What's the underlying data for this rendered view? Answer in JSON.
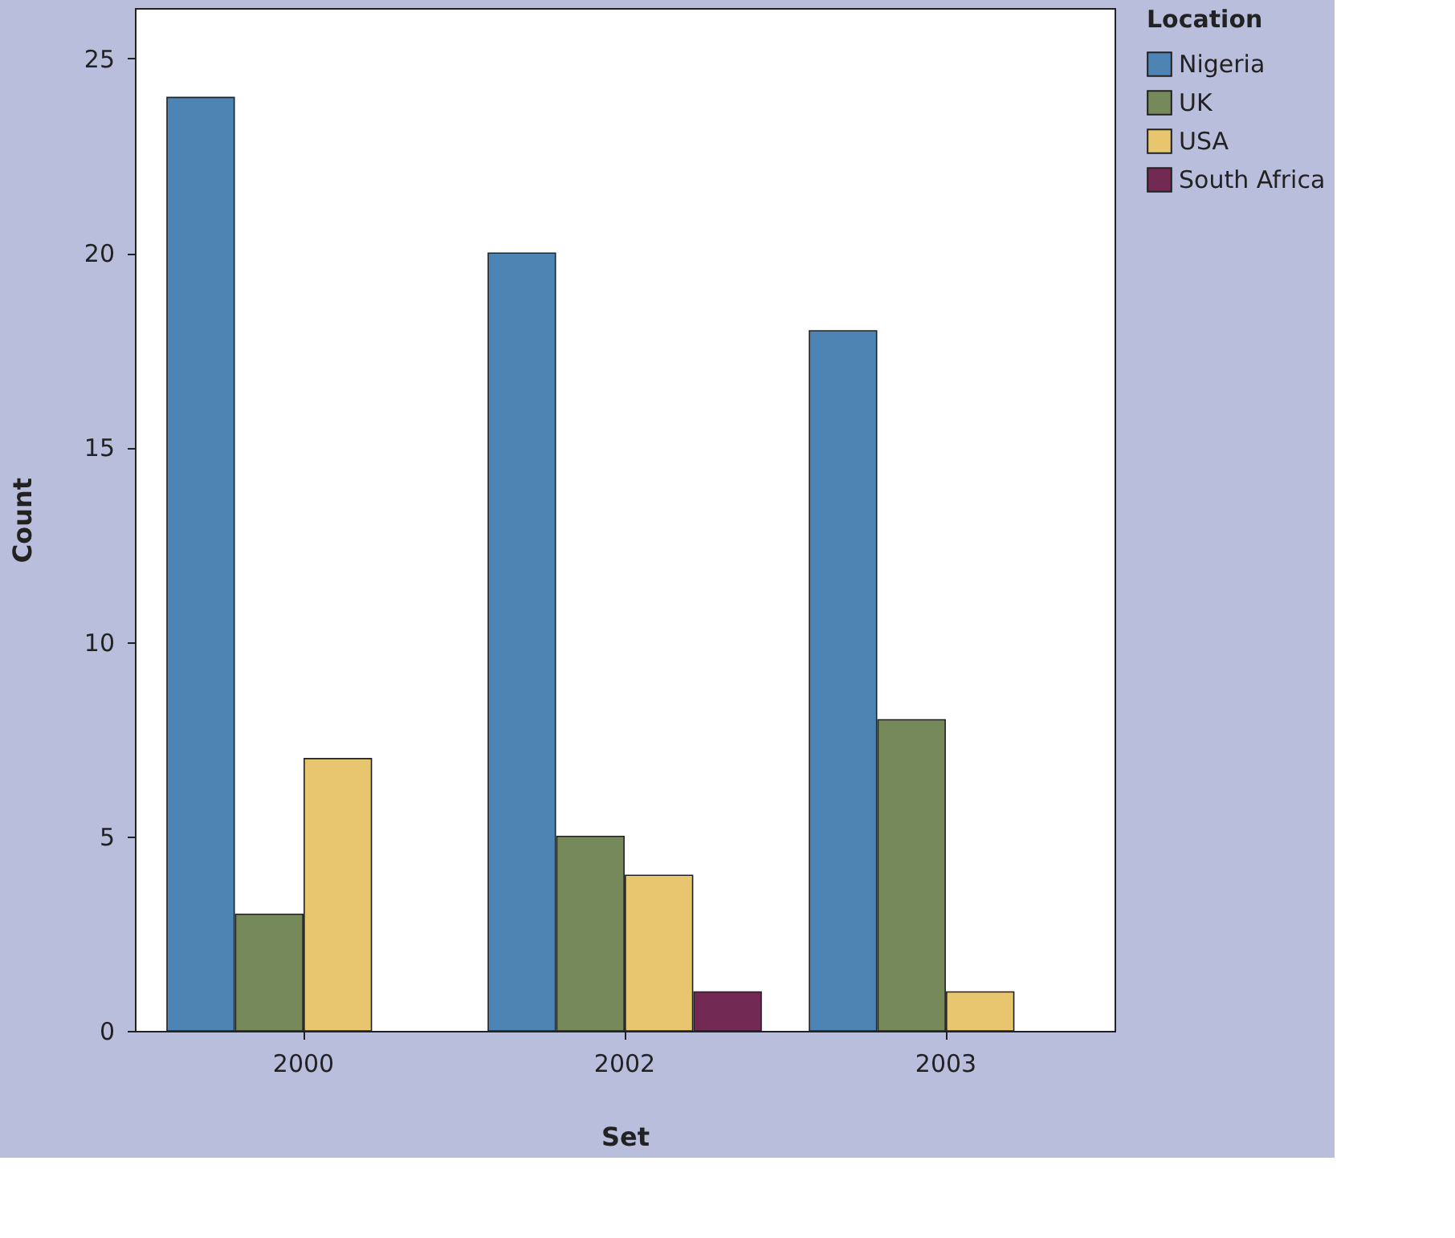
{
  "chart_data": {
    "type": "bar",
    "xlabel": "Set",
    "ylabel": "Count",
    "legend_title": "Location",
    "categories": [
      "2000",
      "2002",
      "2003"
    ],
    "series": [
      {
        "name": "Nigeria",
        "color": "#4e84b4",
        "values": [
          24,
          20,
          18
        ]
      },
      {
        "name": "UK",
        "color": "#76895a",
        "values": [
          3,
          5,
          8
        ]
      },
      {
        "name": "USA",
        "color": "#e8c66f",
        "values": [
          7,
          4,
          1
        ]
      },
      {
        "name": "South Africa",
        "color": "#722a55",
        "values": [
          null,
          1,
          null
        ]
      }
    ],
    "ylim": [
      0,
      26.3
    ],
    "yticks": [
      0,
      5,
      10,
      15,
      20,
      25
    ],
    "grid": false,
    "legend": "top right"
  }
}
